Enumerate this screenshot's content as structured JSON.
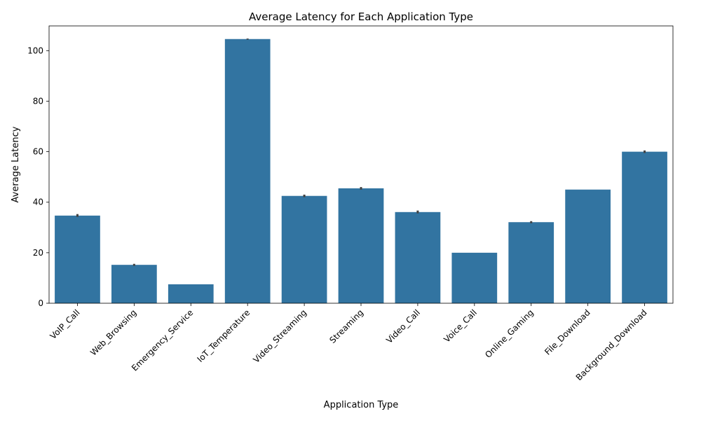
{
  "chart_data": {
    "type": "bar",
    "title": "Average Latency for Each Application Type",
    "xlabel": "Application Type",
    "ylabel": "Average Latency",
    "categories": [
      "VoIP_Call",
      "Web_Browsing",
      "Emergency_Service",
      "IoT_Temperature",
      "Video_Streaming",
      "Streaming",
      "Video_Call",
      "Voice_Call",
      "Online_Gaming",
      "File_Download",
      "Background_Download"
    ],
    "values": [
      34.7,
      15.2,
      7.5,
      104.6,
      42.5,
      45.5,
      36.1,
      20.0,
      32.1,
      45.0,
      60.0
    ],
    "error_bars": [
      [
        34.2,
        35.3
      ],
      [
        14.8,
        15.6
      ],
      null,
      [
        104.4,
        104.8
      ],
      [
        42.0,
        43.0
      ],
      [
        45.0,
        46.0
      ],
      [
        35.6,
        36.7
      ],
      null,
      [
        31.7,
        32.5
      ],
      null,
      [
        59.5,
        60.5
      ]
    ],
    "ylim": [
      0,
      109.8
    ],
    "yticks": [
      0,
      20,
      40,
      60,
      80,
      100
    ],
    "grid": false,
    "bar_color": "#3274a1",
    "error_color": "#424242"
  }
}
